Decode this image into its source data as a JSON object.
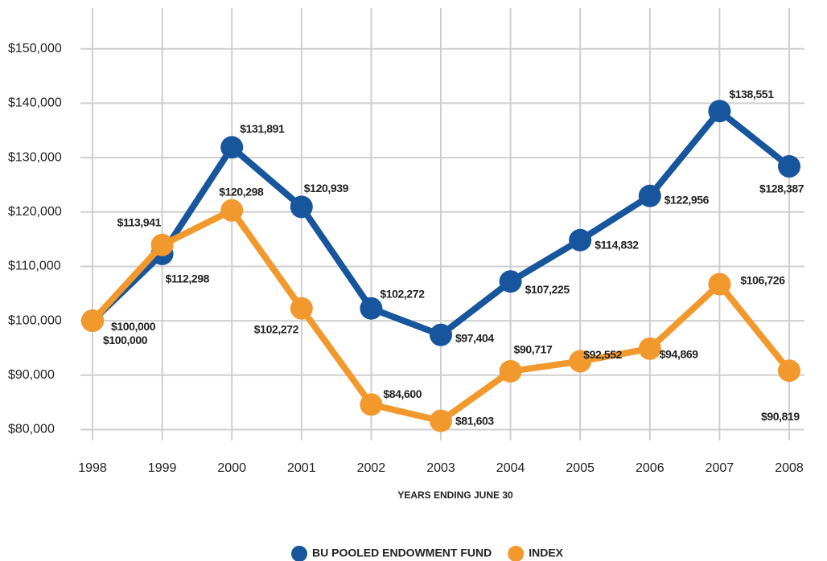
{
  "chart_data": {
    "type": "line",
    "x_label": "YEARS ENDING JUNE 30",
    "categories": [
      "1998",
      "1999",
      "2000",
      "2001",
      "2002",
      "2003",
      "2004",
      "2005",
      "2006",
      "2007",
      "2008"
    ],
    "series": [
      {
        "name": "BU POOLED ENDOWMENT FUND",
        "color": "#17559c",
        "values": [
          100000,
          112298,
          131891,
          120939,
          102272,
          97404,
          107225,
          114832,
          122956,
          138551,
          128387
        ],
        "value_labels": [
          "$100,000",
          "$112,298",
          "$131,891",
          "$120,939",
          "$102,272",
          "$97,404",
          "$107,225",
          "$114,832",
          "$122,956",
          "$138,551",
          "$128,387"
        ]
      },
      {
        "name": "INDEX",
        "color": "#f2992e",
        "values": [
          100000,
          113941,
          120298,
          102272,
          84600,
          81603,
          90717,
          92552,
          94869,
          106726,
          90819
        ],
        "value_labels": [
          "$100,000",
          "$113,941",
          "$120,298",
          "$102,272",
          "$84,600",
          "$81,603",
          "$90,717",
          "$92,552",
          "$94,869",
          "$106,726",
          "$90,819"
        ]
      }
    ],
    "ylim": [
      78000,
      157500
    ],
    "yticks": [
      {
        "value": 80000,
        "label": "$80,000"
      },
      {
        "value": 90000,
        "label": "$90,000"
      },
      {
        "value": 100000,
        "label": "$100,000"
      },
      {
        "value": 110000,
        "label": "$110,000"
      },
      {
        "value": 120000,
        "label": "$120,000"
      },
      {
        "value": 130000,
        "label": "$130,000"
      },
      {
        "value": 140000,
        "label": "$140,000"
      },
      {
        "value": 150000,
        "label": "$150,000"
      }
    ],
    "grid": true,
    "legend": "bottom"
  }
}
